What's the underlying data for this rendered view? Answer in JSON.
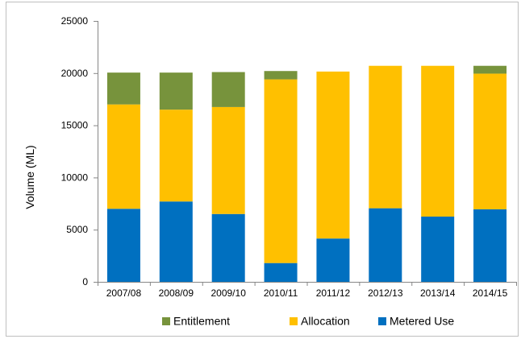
{
  "chart_data": {
    "type": "bar",
    "stacked": true,
    "categories": [
      "2007/08",
      "2008/09",
      "2009/10",
      "2010/11",
      "2011/12",
      "2012/13",
      "2013/14",
      "2014/15"
    ],
    "series": [
      {
        "name": "Metered Use",
        "color": "#0070C0",
        "values": [
          7000,
          7700,
          6500,
          1800,
          4150,
          7050,
          6250,
          6950
        ]
      },
      {
        "name": "Allocation",
        "color": "#FFC000",
        "values": [
          10000,
          8800,
          10250,
          17600,
          16000,
          13650,
          14450,
          13000
        ]
      },
      {
        "name": "Entitlement",
        "color": "#77933C",
        "values": [
          3050,
          3550,
          3350,
          800,
          0,
          0,
          0,
          750
        ]
      }
    ],
    "legend_order": [
      "Entitlement",
      "Allocation",
      "Metered Use"
    ],
    "legend_position": "bottom",
    "title": "",
    "xlabel": "",
    "ylabel": "Volume (ML)",
    "ylim": [
      0,
      25000
    ],
    "yticks": [
      0,
      5000,
      10000,
      15000,
      20000,
      25000
    ],
    "grid": false
  }
}
